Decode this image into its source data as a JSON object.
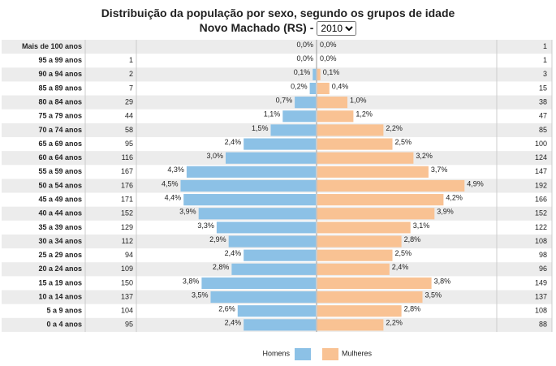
{
  "chart_data": {
    "type": "pyramid",
    "title": "Distribuição da população por sexo, segundo os grupos de idade",
    "subtitle": "Novo Machado (RS) -",
    "year_options": [
      "2010"
    ],
    "categories": [
      "Mais de 100 anos",
      "95 a 99 anos",
      "90 a 94 anos",
      "85 a 89 anos",
      "80 a 84 anos",
      "75 a 79 anos",
      "70 a 74 anos",
      "65 a 69 anos",
      "60 a 64 anos",
      "55 a 59 anos",
      "50 a 54 anos",
      "45 a 49 anos",
      "40 a 44 anos",
      "35 a 39 anos",
      "30 a 34 anos",
      "25 a 29 anos",
      "20 a 24 anos",
      "15 a 19 anos",
      "10 a 14 anos",
      "5 a 9 anos",
      "0 a 4 anos"
    ],
    "series": [
      {
        "name": "Homens",
        "color": "#8cc1e6",
        "values": [
          0.0,
          0.0,
          0.1,
          0.2,
          0.7,
          1.1,
          1.5,
          2.4,
          3.0,
          4.3,
          4.5,
          4.4,
          3.9,
          3.3,
          2.9,
          2.4,
          2.8,
          3.8,
          3.5,
          2.6,
          2.4
        ],
        "value_labels": [
          "0,0%",
          "0,0%",
          "0,1%",
          "0,2%",
          "0,7%",
          "1,1%",
          "1,5%",
          "2,4%",
          "3,0%",
          "4,3%",
          "4,5%",
          "4,4%",
          "3,9%",
          "3,3%",
          "2,9%",
          "2,4%",
          "2,8%",
          "3,8%",
          "3,5%",
          "2,6%",
          "2,4%"
        ],
        "counts": [
          null,
          1,
          2,
          7,
          29,
          44,
          58,
          95,
          116,
          167,
          176,
          171,
          152,
          129,
          112,
          94,
          109,
          150,
          137,
          104,
          95
        ]
      },
      {
        "name": "Mulheres",
        "color": "#f9c293",
        "values": [
          0.0,
          0.0,
          0.1,
          0.4,
          1.0,
          1.2,
          2.2,
          2.5,
          3.2,
          3.7,
          4.9,
          4.2,
          3.9,
          3.1,
          2.8,
          2.5,
          2.4,
          3.8,
          3.5,
          2.8,
          2.2
        ],
        "value_labels": [
          "0,0%",
          "0,0%",
          "0,1%",
          "0,4%",
          "1,0%",
          "1,2%",
          "2,2%",
          "2,5%",
          "3,2%",
          "3,7%",
          "4,9%",
          "4,2%",
          "3,9%",
          "3,1%",
          "2,8%",
          "2,5%",
          "2,4%",
          "3,8%",
          "3,5%",
          "2,8%",
          "2,2%"
        ],
        "counts": [
          1,
          1,
          3,
          15,
          38,
          47,
          85,
          100,
          124,
          147,
          192,
          166,
          152,
          122,
          108,
          98,
          96,
          149,
          137,
          108,
          88
        ]
      }
    ]
  }
}
